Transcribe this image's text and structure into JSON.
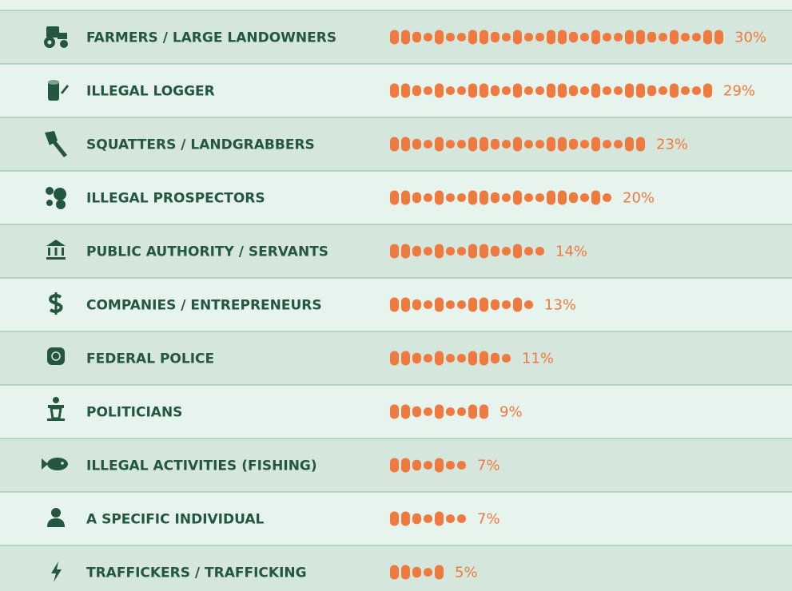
{
  "chart_data": {
    "type": "bar",
    "categories": [
      "FARMERS / LARGE LANDOWNERS",
      "ILLEGAL LOGGER",
      "SQUATTERS / LANDGRABBERS",
      "ILLEGAL PROSPECTORS",
      "PUBLIC AUTHORITY / SERVANTS",
      "COMPANIES / ENTREPRENEURS",
      "FEDERAL POLICE",
      "POLITICIANS",
      "ILLEGAL ACTIVITIES  (FISHING)",
      "A SPECIFIC INDIVIDUAL",
      "TRAFFICKERS / TRAFFICKING"
    ],
    "values": [
      30,
      29,
      23,
      20,
      14,
      13,
      11,
      9,
      7,
      7,
      5
    ],
    "value_labels": [
      "30%",
      "29%",
      "23%",
      "20%",
      "14%",
      "13%",
      "11%",
      "9%",
      "7%",
      "7%",
      "5%"
    ],
    "color": "#ee7a3f"
  }
}
